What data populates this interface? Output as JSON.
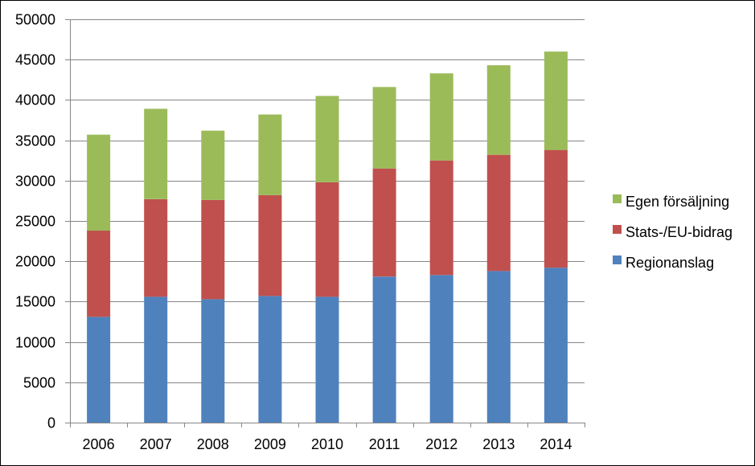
{
  "chart_data": {
    "type": "bar",
    "stacked": true,
    "categories": [
      "2006",
      "2007",
      "2008",
      "2009",
      "2010",
      "2011",
      "2012",
      "2013",
      "2014"
    ],
    "series": [
      {
        "name": "Regionanslag",
        "color": "#4F81BD",
        "values": [
          13100,
          15600,
          15300,
          15700,
          15600,
          18100,
          18300,
          18800,
          19200
        ]
      },
      {
        "name": "Stats-/EU-bidrag",
        "color": "#C0504D",
        "values": [
          10700,
          12100,
          12300,
          12500,
          14200,
          13400,
          14200,
          14400,
          14600
        ]
      },
      {
        "name": "Egen försäljning",
        "color": "#9BBB59",
        "values": [
          11900,
          11200,
          8600,
          10000,
          10700,
          10100,
          10800,
          11100,
          12200
        ]
      }
    ],
    "ylim": [
      0,
      50000
    ],
    "yticks": [
      0,
      5000,
      10000,
      15000,
      20000,
      25000,
      30000,
      35000,
      40000,
      45000,
      50000
    ],
    "grid": true,
    "legend_position": "right",
    "title": "",
    "xlabel": "",
    "ylabel": ""
  }
}
